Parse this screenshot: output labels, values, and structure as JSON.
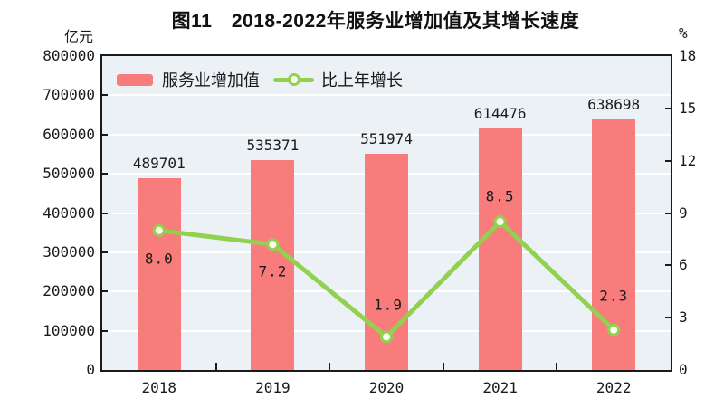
{
  "title": "图11　2018-2022年服务业增加值及其增长速度",
  "left_axis": {
    "unit": "亿元",
    "tick_labels": [
      "0",
      "100000",
      "200000",
      "300000",
      "400000",
      "500000",
      "600000",
      "700000",
      "800000"
    ],
    "min": 0,
    "max": 800000,
    "step": 100000
  },
  "right_axis": {
    "unit": "%",
    "tick_labels": [
      "0",
      "3",
      "6",
      "9",
      "12",
      "15",
      "18"
    ],
    "min": 0,
    "max": 18,
    "step": 3
  },
  "legend": {
    "items": [
      {
        "label": "服务业增加值",
        "marker": "bar-swatch"
      },
      {
        "label": "比上年增长",
        "marker": "line-swatch"
      }
    ]
  },
  "colors": {
    "bar": "#f97c7c",
    "line": "#92d050",
    "marker_fill": "#fcfff0",
    "plot_bg": "#ecf1f6",
    "grid": "#ffffff",
    "axis": "#1a1a1a",
    "text": "#1a1a1a"
  },
  "chart_data": {
    "type": "bar",
    "title": "图11　2018-2022年服务业增加值及其增长速度",
    "categories": [
      "2018",
      "2019",
      "2020",
      "2021",
      "2022"
    ],
    "series": [
      {
        "name": "服务业增加值",
        "type": "bar",
        "axis": "left",
        "values": [
          489701,
          535371,
          551974,
          614476,
          638698
        ],
        "data_labels": [
          "489701",
          "535371",
          "551974",
          "614476",
          "638698"
        ]
      },
      {
        "name": "比上年增长",
        "type": "line",
        "axis": "right",
        "values": [
          8.0,
          7.2,
          1.9,
          8.5,
          2.3
        ],
        "data_labels": [
          "8.0",
          "7.2",
          "1.9",
          "8.5",
          "2.3"
        ],
        "label_side": [
          "below",
          "below",
          "above",
          "above",
          "above"
        ],
        "label_offsets": [
          [
            0,
            31
          ],
          [
            0,
            30
          ],
          [
            2,
            -35
          ],
          [
            0,
            -28
          ],
          [
            0,
            -38
          ]
        ]
      }
    ],
    "xlabel": "",
    "ylabel_left": "亿元",
    "ylabel_right": "%",
    "left_ylim": [
      0,
      800000
    ],
    "right_ylim": [
      0,
      18
    ],
    "grid": true,
    "legend_position": "top-left-inside"
  }
}
